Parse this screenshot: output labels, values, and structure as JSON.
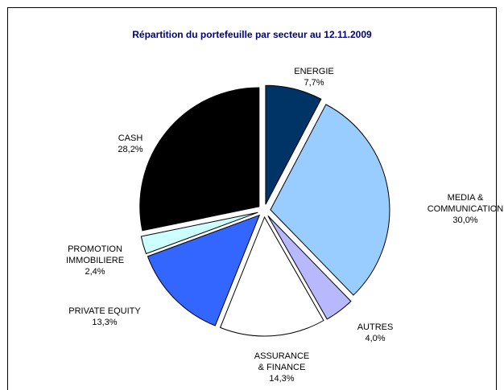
{
  "chart_data": {
    "type": "pie",
    "title": "Répartition du portefeuille par secteur au 12.11.2009",
    "categories": [
      "ENERGIE",
      "MEDIA &\nCOMMUNICATION",
      "AUTRES",
      "ASSURANCE\n& FINANCE",
      "PRIVATE EQUITY",
      "PROMOTION\nIMMOBILIERE",
      "CASH"
    ],
    "values": [
      7.7,
      30.0,
      4.0,
      14.3,
      13.3,
      2.4,
      28.2
    ],
    "value_labels": [
      "7,7%",
      "30,0%",
      "4,0%",
      "14,3%",
      "13,3%",
      "2,4%",
      "28,2%"
    ],
    "colors": [
      "#003366",
      "#99ccff",
      "#b8b8ff",
      "#ffffff",
      "#3366ff",
      "#ccffff",
      "#000000"
    ]
  }
}
